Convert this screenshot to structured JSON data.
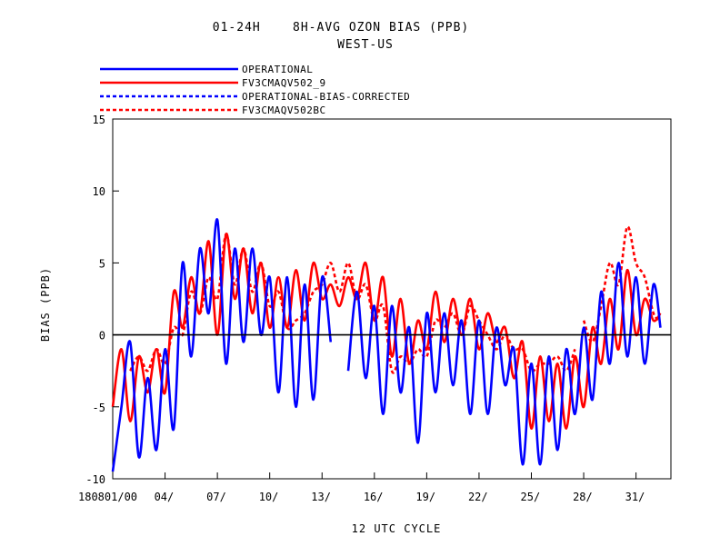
{
  "chart_data": {
    "type": "line",
    "title": "01-24H    8H-AVG OZON BIAS (PPB)",
    "subtitle": "WEST-US",
    "xlabel": "12 UTC CYCLE",
    "ylabel": "BIAS (PPB)",
    "ylim": [
      -10,
      15
    ],
    "yticks": [
      -10,
      -5,
      0,
      5,
      10,
      15
    ],
    "xlim": [
      0,
      32
    ],
    "xticks": [
      {
        "x": 0,
        "label": "180801/00"
      },
      {
        "x": 3,
        "label": "04/"
      },
      {
        "x": 6,
        "label": "07/"
      },
      {
        "x": 9,
        "label": "10/"
      },
      {
        "x": 12,
        "label": "13/"
      },
      {
        "x": 15,
        "label": "16/"
      },
      {
        "x": 18,
        "label": "19/"
      },
      {
        "x": 21,
        "label": "22/"
      },
      {
        "x": 24,
        "label": "25/"
      },
      {
        "x": 27,
        "label": "28/"
      },
      {
        "x": 30,
        "label": "31/"
      }
    ],
    "zero_line": 0,
    "legend_position": "top-left",
    "series": [
      {
        "name": "OPERATIONAL",
        "color": "#0000ff",
        "style": "solid",
        "x": [
          0.0,
          0.5,
          1.0,
          1.5,
          2.0,
          2.5,
          3.0,
          3.5,
          4.0,
          4.5,
          5.0,
          5.5,
          6.0,
          6.5,
          7.0,
          7.5,
          8.0,
          8.5,
          9.0,
          9.5,
          10.0,
          10.5,
          11.0,
          11.5,
          12.0,
          12.5,
          null,
          13.5,
          14.0,
          14.5,
          15.0,
          15.5,
          16.0,
          16.5,
          17.0,
          17.5,
          18.0,
          18.5,
          19.0,
          19.5,
          20.0,
          20.5,
          21.0,
          21.5,
          22.0,
          22.5,
          23.0,
          23.5,
          24.0,
          24.5,
          25.0,
          25.5,
          26.0,
          26.5,
          27.0,
          27.5,
          28.0,
          28.5,
          29.0,
          29.5,
          30.0,
          30.5,
          31.0,
          31.4
        ],
        "y": [
          -9.5,
          -5.0,
          -0.5,
          -8.5,
          -3.0,
          -8.0,
          -1.0,
          -6.5,
          5.0,
          -1.5,
          6.0,
          1.5,
          8.0,
          -2.0,
          6.0,
          -0.5,
          6.0,
          0.0,
          4.0,
          -4.0,
          4.0,
          -5.0,
          3.5,
          -4.5,
          4.0,
          -0.5,
          null,
          -2.5,
          3.0,
          -3.0,
          2.0,
          -5.5,
          2.0,
          -4.0,
          0.5,
          -7.5,
          1.5,
          -4.0,
          1.5,
          -3.5,
          1.0,
          -5.5,
          1.0,
          -5.5,
          0.5,
          -3.5,
          -1.0,
          -9.0,
          -2.0,
          -9.0,
          -1.5,
          -8.0,
          -1.0,
          -5.5,
          0.5,
          -4.5,
          3.0,
          -2.0,
          5.0,
          -1.5,
          4.0,
          -2.0,
          3.5,
          0.5
        ]
      },
      {
        "name": "FV3CMAQV502_9",
        "color": "#ff0000",
        "style": "solid",
        "x": [
          0.0,
          0.5,
          1.0,
          1.5,
          2.0,
          2.5,
          3.0,
          3.5,
          4.0,
          4.5,
          5.0,
          5.5,
          6.0,
          6.5,
          7.0,
          7.5,
          8.0,
          8.5,
          9.0,
          9.5,
          10.0,
          10.5,
          11.0,
          11.5,
          12.0,
          12.5,
          13.0,
          13.5,
          14.0,
          14.5,
          15.0,
          15.5,
          16.0,
          16.5,
          17.0,
          17.5,
          18.0,
          18.5,
          19.0,
          19.5,
          20.0,
          20.5,
          21.0,
          21.5,
          22.0,
          22.5,
          23.0,
          23.5,
          24.0,
          24.5,
          25.0,
          25.5,
          26.0,
          26.5,
          27.0,
          27.5,
          28.0,
          28.5,
          29.0,
          29.5,
          30.0,
          30.5,
          31.0,
          31.4
        ],
        "y": [
          -5.0,
          -1.0,
          -6.0,
          -1.5,
          -4.0,
          -1.0,
          -4.0,
          3.0,
          0.5,
          4.0,
          1.5,
          6.5,
          0.0,
          7.0,
          2.5,
          6.0,
          1.5,
          5.0,
          0.5,
          4.0,
          0.5,
          4.5,
          1.0,
          5.0,
          2.5,
          3.5,
          2.0,
          4.0,
          2.5,
          5.0,
          1.0,
          4.0,
          -1.5,
          2.5,
          -2.0,
          1.0,
          -1.0,
          3.0,
          -0.5,
          2.5,
          0.0,
          2.5,
          -1.0,
          1.5,
          -0.5,
          0.5,
          -3.0,
          -0.5,
          -6.5,
          -1.5,
          -6.0,
          -2.0,
          -6.5,
          -1.5,
          -5.0,
          0.5,
          -2.0,
          2.5,
          -1.0,
          4.5,
          0.0,
          2.5,
          1.0,
          1.5
        ]
      },
      {
        "name": "OPERATIONAL-BIAS-CORRECTED",
        "color": "#0000ff",
        "style": "dashed",
        "x": [],
        "y": []
      },
      {
        "name": "FV3CMAQV502BC",
        "color": "#ff0000",
        "style": "dashed",
        "x": [
          1.0,
          1.5,
          2.0,
          2.5,
          3.0,
          3.5,
          4.0,
          4.5,
          5.0,
          5.5,
          6.0,
          6.5,
          7.0,
          7.5,
          8.0,
          8.5,
          9.0,
          9.5,
          10.0,
          10.5,
          11.0,
          11.5,
          12.0,
          12.5,
          13.0,
          13.5,
          14.0,
          14.5,
          15.0,
          15.5,
          16.0,
          16.5,
          17.0,
          17.5,
          18.0,
          18.5,
          19.0,
          19.5,
          20.0,
          20.5,
          21.0,
          21.5,
          22.0,
          22.5,
          23.0,
          23.5,
          24.0,
          24.5,
          25.0,
          25.5,
          26.0,
          26.5,
          null,
          27.0,
          27.5,
          28.0,
          28.5,
          29.0,
          29.5,
          30.0,
          30.5,
          31.0,
          31.4
        ],
        "y": [
          -2.5,
          -1.5,
          -2.5,
          -1.0,
          -2.0,
          0.5,
          0.0,
          3.0,
          1.5,
          4.0,
          2.5,
          7.0,
          3.5,
          6.0,
          3.0,
          5.0,
          2.0,
          3.0,
          0.5,
          1.0,
          1.5,
          3.0,
          3.5,
          5.0,
          3.0,
          5.0,
          2.5,
          3.5,
          1.0,
          2.0,
          -2.5,
          -1.5,
          -2.0,
          -1.0,
          -1.5,
          1.0,
          0.5,
          1.5,
          0.0,
          2.0,
          1.0,
          0.0,
          -1.0,
          0.0,
          -1.0,
          -1.0,
          -2.5,
          -2.0,
          -2.0,
          -1.5,
          -2.5,
          -1.0,
          null,
          1.0,
          -0.5,
          2.0,
          5.0,
          3.5,
          7.5,
          5.0,
          4.0,
          1.5,
          1.0
        ]
      }
    ]
  }
}
